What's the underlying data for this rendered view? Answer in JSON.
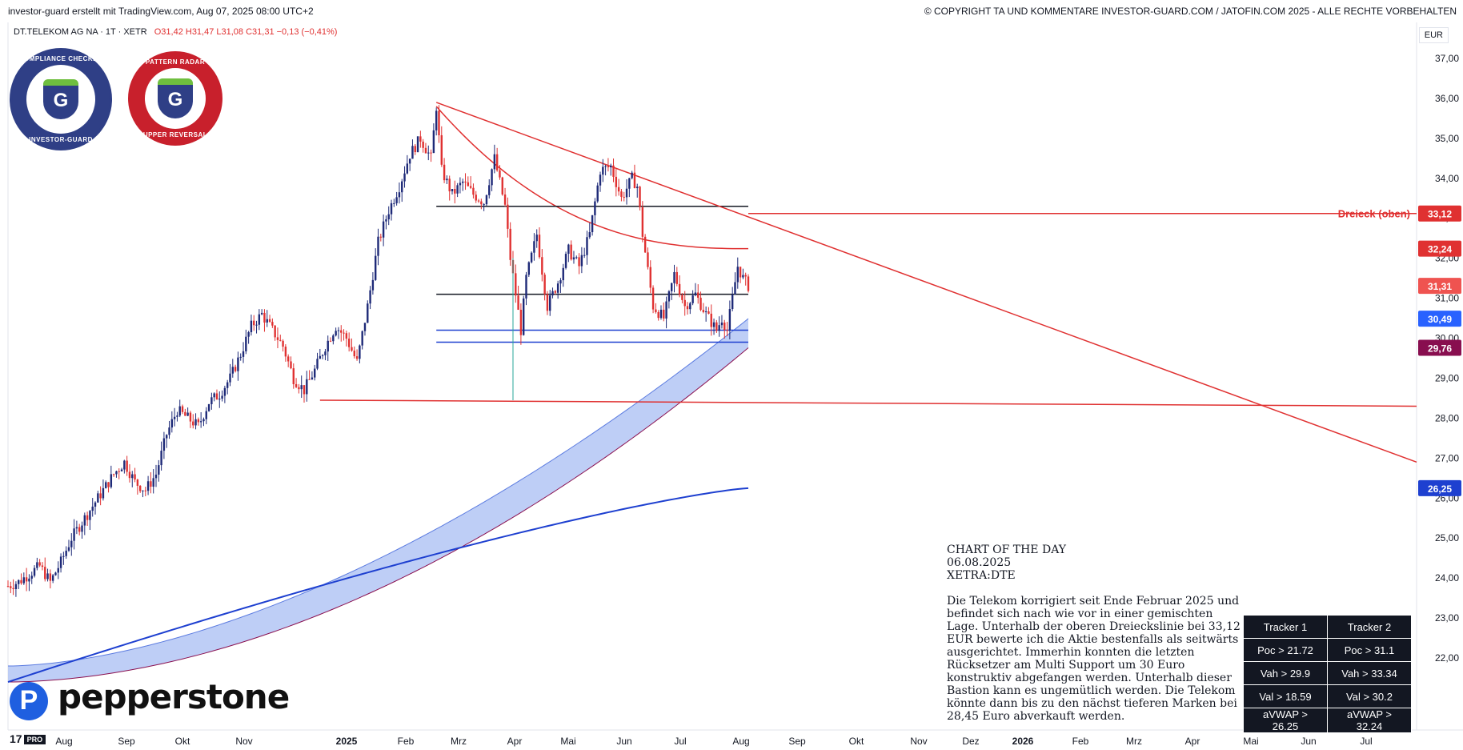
{
  "header": {
    "credit": "investor-guard erstellt mit TradingView.com, Aug 07, 2025 08:00 UTC+2",
    "copyright": "© COPYRIGHT TA UND KOMMENTARE INVESTOR-GUARD.COM / JATOFIN.COM 2025 - ALLE RECHTE VORBEHALTEN"
  },
  "legend": {
    "symbol": "DT.TELEKOM AG NA · 1T · XETR",
    "ohlc": "O31,42  H31,47  L31,08  C31,31  −0,13 (−0,41%)"
  },
  "currency": "EUR",
  "badges": {
    "compliance_top": "COMPLIANCE CHECKED",
    "compliance_bottom": "INVESTOR-GUARD",
    "radar_top": "PATTERN RADAR",
    "radar_bottom": "UPPER REVERSAL",
    "letter": "G"
  },
  "watermark": {
    "brand": "pepperstone",
    "tv": "17",
    "tv_pro": "PRO"
  },
  "annotation": {
    "title": "CHART OF THE DAY",
    "date": "06.08.2025",
    "ticker": "XETRA:DTE",
    "body": "Die Telekom korrigiert seit Ende Februar 2025 und befindet sich nach wie vor in einer gemischten Lage. Unterhalb der oberen Dreieckslinie bei 33,12 EUR bewerte ich die Aktie bestenfalls als seitwärts ausgerichtet. Immerhin konnten die letzten Rücksetzer am Multi Support um 30 Euro konstruktiv abgefangen werden. Unterhalb dieser Bastion kann es ungemütlich werden. Die Telekom könnte dann bis zu den nächst tieferen Marken bei 28,45 Euro abverkauft werden."
  },
  "tracker": {
    "headers": [
      "Tracker 1",
      "Tracker 2"
    ],
    "rows": [
      [
        "Poc > 21.72",
        "Poc > 31.1"
      ],
      [
        "Vah > 29.9",
        "Vah > 33.34"
      ],
      [
        "Val > 18.59",
        "Val > 30.2"
      ],
      [
        "aVWAP > 26.25",
        "aVWAP > 32.24"
      ]
    ]
  },
  "chart_data": {
    "type": "candlestick",
    "symbol": "DT.TELEKOM AG NA",
    "interval": "1T",
    "ylim": [
      21.0,
      37.5
    ],
    "y_ticks": [
      "22,00",
      "23,00",
      "24,00",
      "25,00",
      "26,00",
      "27,00",
      "28,00",
      "29,00",
      "30,00",
      "31,00",
      "32,00",
      "33,00",
      "34,00",
      "35,00",
      "36,00",
      "37,00"
    ],
    "x_labels": [
      "Aug",
      "Sep",
      "Okt",
      "Nov",
      "2025",
      "Feb",
      "Mrz",
      "Apr",
      "Mai",
      "Jun",
      "Jul",
      "Aug",
      "Sep",
      "Okt",
      "Nov",
      "Dez",
      "2026",
      "Feb",
      "Mrz",
      "Apr",
      "Mai",
      "Jun",
      "Jul"
    ],
    "price_path": [
      [
        0,
        23.8
      ],
      [
        2,
        23.9
      ],
      [
        4,
        24.1
      ],
      [
        6,
        24.3
      ],
      [
        8,
        23.9
      ],
      [
        10,
        24.4
      ],
      [
        12,
        25.0
      ],
      [
        14,
        25.4
      ],
      [
        16,
        25.8
      ],
      [
        18,
        26.2
      ],
      [
        20,
        26.6
      ],
      [
        22,
        26.9
      ],
      [
        24,
        26.4
      ],
      [
        26,
        26.2
      ],
      [
        28,
        26.6
      ],
      [
        30,
        27.6
      ],
      [
        32,
        28.2
      ],
      [
        34,
        28.0
      ],
      [
        36,
        27.8
      ],
      [
        38,
        28.4
      ],
      [
        40,
        28.6
      ],
      [
        42,
        29.0
      ],
      [
        44,
        29.6
      ],
      [
        46,
        30.3
      ],
      [
        48,
        30.6
      ],
      [
        50,
        30.2
      ],
      [
        52,
        29.8
      ],
      [
        54,
        29.0
      ],
      [
        56,
        28.7
      ],
      [
        58,
        29.2
      ],
      [
        60,
        29.8
      ],
      [
        62,
        30.3
      ],
      [
        64,
        30.0
      ],
      [
        66,
        29.4
      ],
      [
        68,
        30.8
      ],
      [
        70,
        32.4
      ],
      [
        72,
        33.2
      ],
      [
        74,
        33.8
      ],
      [
        76,
        34.6
      ],
      [
        78,
        35.0
      ],
      [
        80,
        34.5
      ],
      [
        81,
        35.8
      ],
      [
        82,
        34.2
      ],
      [
        84,
        33.6
      ],
      [
        86,
        33.9
      ],
      [
        88,
        33.6
      ],
      [
        90,
        33.4
      ],
      [
        92,
        34.5
      ],
      [
        94,
        33.3
      ],
      [
        95,
        32.0
      ],
      [
        97,
        30.2
      ],
      [
        98,
        31.5
      ],
      [
        100,
        32.6
      ],
      [
        102,
        30.8
      ],
      [
        104,
        31.4
      ],
      [
        106,
        32.2
      ],
      [
        108,
        31.8
      ],
      [
        110,
        32.6
      ],
      [
        112,
        34.2
      ],
      [
        114,
        34.3
      ],
      [
        116,
        33.5
      ],
      [
        118,
        34.0
      ],
      [
        119,
        33.8
      ],
      [
        120,
        32.6
      ],
      [
        122,
        30.8
      ],
      [
        124,
        30.5
      ],
      [
        126,
        31.6
      ],
      [
        128,
        30.8
      ],
      [
        130,
        31.1
      ],
      [
        132,
        30.6
      ],
      [
        134,
        30.2
      ],
      [
        135,
        30.5
      ],
      [
        136,
        30.2
      ],
      [
        138,
        31.8
      ],
      [
        139,
        31.5
      ],
      [
        140,
        31.31
      ]
    ],
    "events": {
      "low_wick_apr": 28.45
    },
    "overlays": {
      "trend_line_upper": {
        "from": [
          "Mrz",
          35.9
        ],
        "to": [
          "Jul",
          26.9
        ]
      },
      "support_line_lower": {
        "from": [
          "Dez 2024",
          28.45
        ],
        "to": [
          "Jul",
          28.3
        ]
      },
      "level_dreieck_oben": 33.12,
      "level_33_3": 33.3,
      "level_31_1": 31.1,
      "level_30_2": 30.2,
      "level_29_9": 29.9,
      "vwap_red_end": 32.24,
      "vwap_blue_end": 26.25,
      "vwap_band_upper_end": 30.49,
      "vwap_band_lower_end": 29.76
    },
    "price_labels": [
      {
        "text": "Dreieck (oben)",
        "value": 33.12,
        "color": "#e03131"
      },
      {
        "text": "33,12",
        "value": 33.12,
        "color": "#e03131"
      },
      {
        "text": "32,24",
        "value": 32.24,
        "color": "#e03131"
      },
      {
        "text": "31,31",
        "value": 31.31,
        "color": "#ef5350"
      },
      {
        "text": "30,49",
        "value": 30.49,
        "color": "#2962ff"
      },
      {
        "text": "29,76",
        "value": 29.76,
        "color": "#880e4f"
      },
      {
        "text": "26,25",
        "value": 26.25,
        "color": "#1e40d0"
      }
    ],
    "colors": {
      "up": "#1e2a78",
      "down": "#e03131",
      "trend": "#e03131",
      "band": "#b3c6f5"
    }
  }
}
